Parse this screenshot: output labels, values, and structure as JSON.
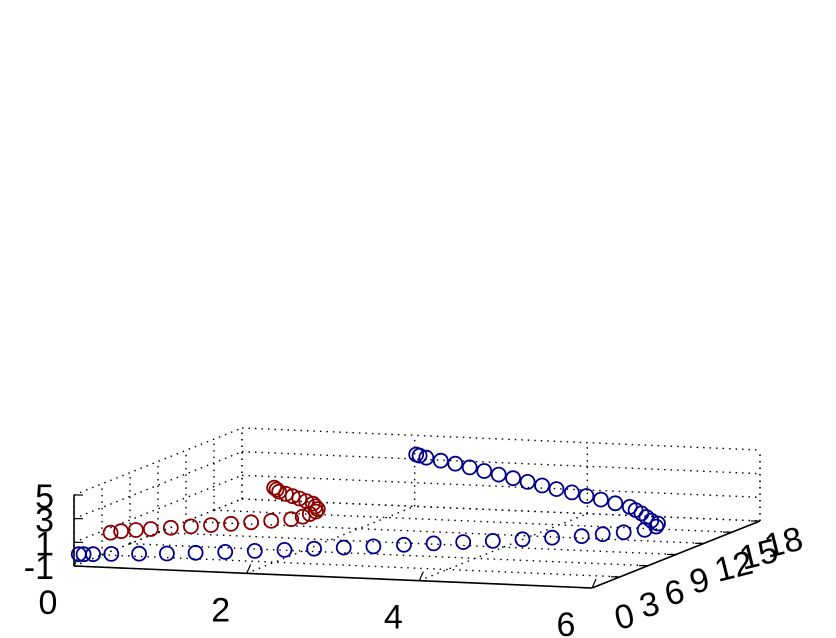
{
  "chart_data": {
    "type": "scatter",
    "projection": "3d",
    "title": "",
    "xlabel": "",
    "ylabel": "",
    "zlabel": "",
    "xlim": [
      0,
      6
    ],
    "ylim": [
      0,
      18
    ],
    "zlim": [
      -1,
      5
    ],
    "grid": true,
    "x_ticks": [
      "0",
      "2",
      "4",
      "6"
    ],
    "y_ticks": [
      "0",
      "3",
      "6",
      "9",
      "12",
      "15",
      "18"
    ],
    "z_ticks": [
      "-1",
      "1",
      "3",
      "5"
    ],
    "marker": "open-circle",
    "series": [
      {
        "color": "#00008b",
        "points": [
          [
            0.05,
            0.05,
            0.0
          ],
          [
            0.1,
            0.1,
            0.0
          ],
          [
            0.2,
            0.2,
            0.0
          ],
          [
            0.4,
            0.3,
            0.05
          ],
          [
            0.7,
            0.5,
            0.1
          ],
          [
            1.0,
            0.7,
            0.15
          ],
          [
            1.3,
            1.0,
            0.2
          ],
          [
            1.6,
            1.4,
            0.25
          ],
          [
            1.9,
            1.8,
            0.3
          ],
          [
            2.2,
            2.2,
            0.35
          ],
          [
            2.5,
            2.6,
            0.42
          ],
          [
            2.8,
            3.0,
            0.48
          ],
          [
            3.1,
            3.4,
            0.55
          ],
          [
            3.4,
            3.9,
            0.62
          ],
          [
            3.7,
            4.3,
            0.7
          ],
          [
            4.0,
            4.7,
            0.78
          ],
          [
            4.3,
            5.1,
            0.85
          ],
          [
            4.6,
            5.5,
            0.95
          ],
          [
            4.9,
            5.9,
            1.05
          ],
          [
            5.2,
            6.3,
            1.15
          ],
          [
            5.4,
            6.7,
            1.25
          ],
          [
            5.6,
            7.1,
            1.35
          ],
          [
            5.8,
            7.5,
            1.5
          ],
          [
            5.9,
            7.8,
            1.7
          ],
          [
            5.9,
            8.0,
            1.9
          ],
          [
            5.8,
            8.2,
            2.05
          ],
          [
            5.7,
            8.6,
            2.2
          ],
          [
            5.6,
            9.0,
            2.35
          ],
          [
            5.5,
            9.3,
            2.5
          ],
          [
            5.4,
            9.6,
            2.65
          ],
          [
            5.2,
            9.9,
            2.8
          ],
          [
            5.0,
            10.2,
            2.95
          ],
          [
            4.8,
            10.5,
            3.1
          ],
          [
            4.6,
            10.8,
            3.25
          ],
          [
            4.4,
            11.0,
            3.4
          ],
          [
            4.2,
            11.3,
            3.55
          ],
          [
            4.0,
            11.6,
            3.7
          ],
          [
            3.8,
            11.9,
            3.85
          ],
          [
            3.6,
            12.2,
            4.0
          ],
          [
            3.4,
            12.5,
            4.15
          ],
          [
            3.2,
            12.8,
            4.3
          ],
          [
            3.0,
            13.1,
            4.45
          ],
          [
            2.8,
            13.4,
            4.55
          ],
          [
            2.6,
            13.7,
            4.65
          ],
          [
            2.5,
            13.9,
            4.72
          ],
          [
            2.45,
            14.0,
            4.78
          ]
        ]
      },
      {
        "color": "#8b0000",
        "points": [
          [
            0.1,
            3.0,
            0.9
          ],
          [
            0.2,
            3.2,
            1.0
          ],
          [
            0.35,
            3.4,
            1.08
          ],
          [
            0.5,
            3.6,
            1.15
          ],
          [
            0.7,
            3.9,
            1.22
          ],
          [
            0.9,
            4.2,
            1.3
          ],
          [
            1.1,
            4.5,
            1.38
          ],
          [
            1.3,
            4.8,
            1.46
          ],
          [
            1.5,
            5.1,
            1.55
          ],
          [
            1.7,
            5.4,
            1.65
          ],
          [
            1.9,
            5.7,
            1.75
          ],
          [
            2.0,
            6.0,
            1.9
          ],
          [
            2.05,
            6.3,
            2.05
          ],
          [
            2.1,
            6.5,
            2.2
          ],
          [
            2.1,
            6.7,
            2.35
          ],
          [
            2.05,
            6.9,
            2.5
          ],
          [
            2.0,
            7.1,
            2.65
          ],
          [
            1.9,
            7.3,
            2.78
          ],
          [
            1.8,
            7.5,
            2.9
          ],
          [
            1.7,
            7.7,
            3.0
          ],
          [
            1.6,
            7.9,
            3.1
          ],
          [
            1.5,
            8.1,
            3.2
          ],
          [
            1.45,
            8.3,
            3.3
          ],
          [
            1.4,
            8.5,
            3.38
          ]
        ]
      }
    ]
  }
}
